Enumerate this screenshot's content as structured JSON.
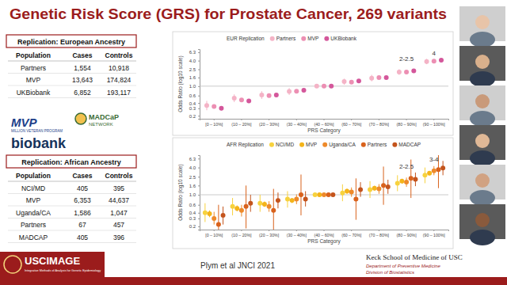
{
  "slide": {
    "title": "Genetic Risk Score (GRS) for Prostate Cancer, 269 variants",
    "tables": [
      {
        "title": "Replication: European Ancestry",
        "header": [
          "Population",
          "Cases",
          "Controls"
        ],
        "rows": [
          [
            "Partners",
            "1,554",
            "10,918"
          ],
          [
            "MVP",
            "13,643",
            "174,824"
          ],
          [
            "UKBiobank",
            "6,852",
            "193,117"
          ]
        ]
      },
      {
        "title": "Replication: African Ancestry",
        "header": [
          "Population",
          "Cases",
          "Controls"
        ],
        "rows": [
          [
            "NCI/MD",
            "405",
            "395"
          ],
          [
            "MVP",
            "6,353",
            "44,637"
          ],
          [
            "Uganda/CA",
            "1,586",
            "1,047"
          ],
          [
            "Partners",
            "67",
            "457"
          ],
          [
            "MADCAP",
            "405",
            "396"
          ]
        ]
      }
    ],
    "logos": [
      "MVP",
      "MILLION VETERAN PROGRAM",
      "MADCaP",
      "NETWORK",
      "biobank"
    ],
    "footer": {
      "logo": "USCIMAGE",
      "logo_sub": "Integrative Methods of Analysis for Genetic Epidemiology",
      "citation": "Plym et al JNCI 2021",
      "school": "Keck School of Medicine of USC",
      "department": "Department of Preventive Medicine",
      "division": "Division of Biostatistics"
    }
  },
  "chart_data": [
    {
      "type": "scatter",
      "marker": "circle",
      "log": "y",
      "grid": false,
      "legend": "top",
      "legend_title": "EUR Replication",
      "x_label": "PRS Category",
      "y_label": "Odds Ratio (log10 scale)",
      "categories": [
        "[0 – 10%]",
        "(10 – 20%]",
        "(20 – 30%]",
        "(30 – 40%]",
        "(40 – 60%]",
        "(60 – 70%]",
        "(70 – 80%]",
        "(80 – 90%]",
        "(90 – 100%]"
      ],
      "ylim": [
        0.17,
        7.5
      ],
      "yticks": [
        0.2,
        0.3,
        0.4,
        0.6,
        {
          "value": 1,
          "label": "1.0"
        },
        1.6,
        2.5,
        {
          "value": 4,
          "label": "4.0"
        },
        6.3
      ],
      "reference_line": 1,
      "series": [
        {
          "name": "Partners",
          "color": "#f4b3c6",
          "values": [
            0.35,
            0.52,
            0.62,
            0.75,
            1.0,
            1.28,
            1.55,
            2.15,
            3.8
          ],
          "lower": [
            0.27,
            0.42,
            0.5,
            0.62,
            1.0,
            1.08,
            1.3,
            1.85,
            3.3
          ],
          "upper": [
            0.45,
            0.64,
            0.76,
            0.9,
            1.0,
            1.5,
            1.85,
            2.5,
            4.4
          ]
        },
        {
          "name": "MVP",
          "color": "#ec8fb3",
          "values": [
            0.33,
            0.47,
            0.6,
            0.76,
            1.0,
            1.25,
            1.6,
            2.15,
            3.9
          ],
          "lower": [
            0.3,
            0.44,
            0.56,
            0.72,
            1.0,
            1.19,
            1.53,
            2.06,
            3.75
          ],
          "upper": [
            0.36,
            0.5,
            0.64,
            0.8,
            1.0,
            1.31,
            1.67,
            2.24,
            4.05
          ]
        },
        {
          "name": "UKBiobank",
          "color": "#d4579b",
          "values": [
            0.3,
            0.45,
            0.62,
            0.8,
            1.0,
            1.32,
            1.6,
            2.3,
            4.1
          ],
          "lower": [
            0.27,
            0.42,
            0.58,
            0.76,
            1.0,
            1.25,
            1.52,
            2.2,
            3.9
          ],
          "upper": [
            0.33,
            0.48,
            0.66,
            0.84,
            1.0,
            1.39,
            1.68,
            2.4,
            4.3
          ]
        }
      ],
      "annotations": [
        {
          "text": "2-2.5",
          "x": "(80 – 90%]"
        },
        {
          "text": "4",
          "x": "(90 – 100%]"
        }
      ]
    },
    {
      "type": "scatter",
      "marker": "circle",
      "log": "y",
      "grid": false,
      "legend": "top",
      "legend_title": "AFR Replication",
      "x_label": "PRS Category",
      "y_label": "Odds Ratio (log10 scale)",
      "categories": [
        "[0 – 10%]",
        "(10 – 20%]",
        "(20 – 30%]",
        "(30 – 40%]",
        "(40 – 60%]",
        "(60 – 70%]",
        "(70 – 80%]",
        "(80 – 90%]",
        "(90 – 100%]"
      ],
      "ylim": [
        0.17,
        7.5
      ],
      "yticks": [
        0.2,
        0.3,
        0.4,
        0.6,
        {
          "value": 1,
          "label": "1.0"
        },
        1.6,
        2.5,
        {
          "value": 4,
          "label": "4.0"
        },
        6.3
      ],
      "reference_line": 1,
      "series": [
        {
          "name": "NCI/MD",
          "color": "#f7d23e",
          "values": [
            0.4,
            0.55,
            0.65,
            0.8,
            1.0,
            1.1,
            1.3,
            1.8,
            2.7
          ],
          "lower": [
            0.25,
            0.35,
            0.42,
            0.52,
            1.0,
            0.72,
            0.85,
            1.2,
            1.8
          ],
          "upper": [
            0.65,
            0.85,
            1.0,
            1.2,
            1.0,
            1.7,
            2.0,
            2.7,
            4.0
          ]
        },
        {
          "name": "MVP",
          "color": "#f4b41a",
          "values": [
            0.38,
            0.5,
            0.62,
            0.75,
            1.0,
            1.2,
            1.4,
            2.0,
            3.0
          ],
          "lower": [
            0.32,
            0.43,
            0.54,
            0.66,
            1.0,
            1.06,
            1.24,
            1.8,
            2.7
          ],
          "upper": [
            0.45,
            0.58,
            0.71,
            0.85,
            1.0,
            1.36,
            1.58,
            2.24,
            3.35
          ]
        },
        {
          "name": "Uganda/CA",
          "color": "#ee8a2a",
          "values": [
            0.3,
            0.45,
            0.55,
            0.8,
            1.0,
            1.15,
            1.35,
            1.9,
            3.4
          ],
          "lower": [
            0.22,
            0.33,
            0.42,
            0.62,
            1.0,
            0.9,
            1.05,
            1.5,
            2.7
          ],
          "upper": [
            0.42,
            0.6,
            0.72,
            1.02,
            1.0,
            1.45,
            1.72,
            2.4,
            4.3
          ]
        },
        {
          "name": "Partners",
          "color": "#d9621c",
          "values": [
            0.22,
            0.55,
            0.45,
            1.0,
            1.0,
            0.8,
            1.6,
            2.3,
            3.6
          ],
          "lower": [
            0.08,
            0.18,
            0.15,
            0.35,
            1.0,
            0.28,
            0.6,
            0.85,
            1.4
          ],
          "upper": [
            0.6,
            1.6,
            1.35,
            2.8,
            1.0,
            2.3,
            4.2,
            6.0,
            9.0
          ]
        },
        {
          "name": "MADCAP",
          "color": "#c4541c",
          "values": [
            0.35,
            0.65,
            0.75,
            0.8,
            1.0,
            1.3,
            1.5,
            2.2,
            3.9
          ],
          "lower": [
            0.22,
            0.42,
            0.5,
            0.55,
            1.0,
            0.9,
            1.05,
            1.55,
            2.7
          ],
          "upper": [
            0.55,
            1.0,
            1.12,
            1.2,
            1.0,
            1.9,
            2.15,
            3.1,
            5.6
          ]
        }
      ],
      "annotations": [
        {
          "text": "2-2.5",
          "x": "(80 – 90%]"
        },
        {
          "text": "3-4",
          "x": "(90 – 100%]"
        }
      ]
    }
  ]
}
